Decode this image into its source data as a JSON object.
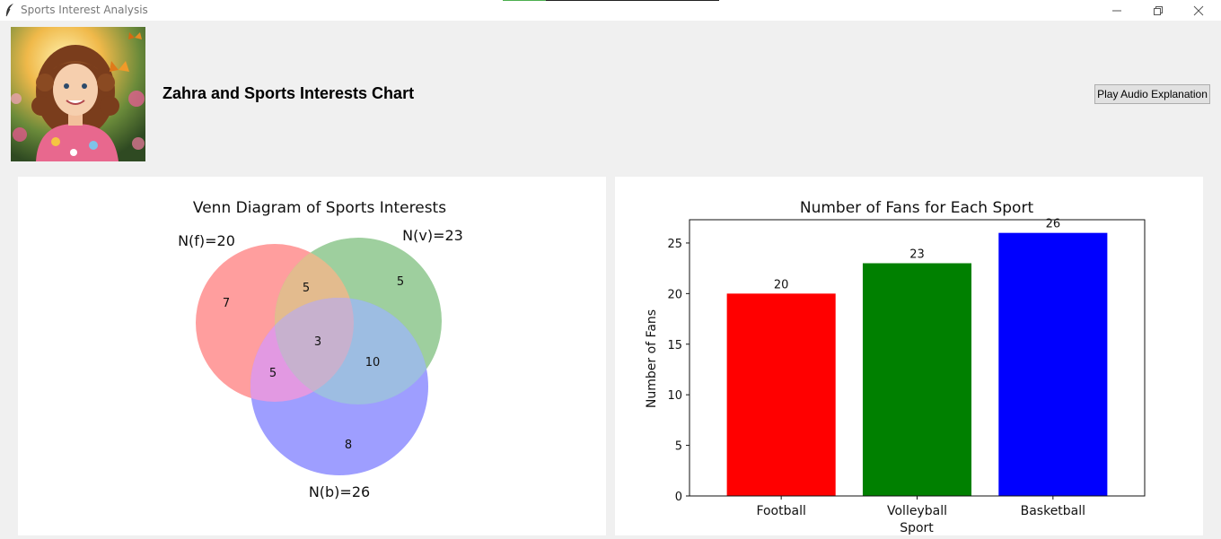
{
  "window": {
    "title": "Sports Interest Analysis"
  },
  "header": {
    "title": "Zahra and Sports Interests Chart",
    "audio_button_label": "Play Audio Explanation"
  },
  "venn": {
    "title": "Venn Diagram of Sports Interests",
    "sets": [
      {
        "label": "N(f)=20",
        "color": "#ff9999"
      },
      {
        "label": "N(v)=23",
        "color": "#99cc99"
      },
      {
        "label": "N(b)=26",
        "color": "#9999ff"
      }
    ],
    "regions": {
      "f_only": "7",
      "v_only": "5",
      "b_only": "8",
      "f_v_only": "5",
      "f_b_only": "5",
      "v_b_only": "10",
      "f_v_b": "3"
    }
  },
  "chart_data": {
    "type": "bar",
    "title": "Number of Fans for Each Sport",
    "xlabel": "Sport",
    "ylabel": "Number of Fans",
    "categories": [
      "Football",
      "Volleyball",
      "Basketball"
    ],
    "values": [
      20,
      23,
      26
    ],
    "colors": [
      "#ff0000",
      "#008000",
      "#0000ff"
    ],
    "ylim": [
      0,
      27.3
    ],
    "yticks": [
      0,
      5,
      10,
      15,
      20,
      25
    ],
    "grid": false
  }
}
